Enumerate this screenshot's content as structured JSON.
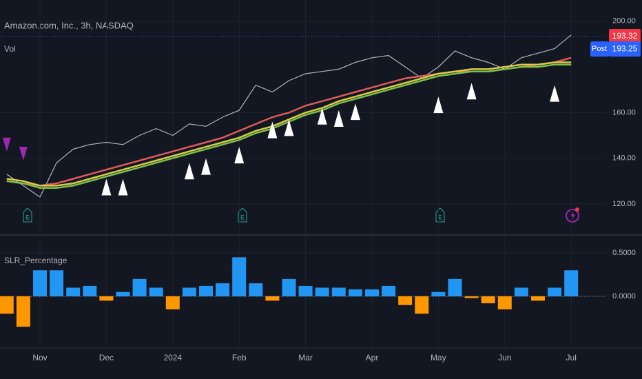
{
  "chart_data": [
    {
      "type": "line",
      "title": "Amazon.com, Inc., 3h, NASDAQ",
      "subtitle": "Vol",
      "ylim": [
        106.7,
        209.3
      ],
      "yticks": [
        {
          "value": 120,
          "label": "120.00"
        },
        {
          "value": 140,
          "label": "140.00"
        },
        {
          "value": 160,
          "label": "160.00"
        },
        {
          "value": 200,
          "label": "200.00"
        }
      ],
      "last_price": 193.32,
      "post_tag": "Post",
      "post_price": 193.25,
      "grid": true,
      "series": [
        {
          "style": "line",
          "color": "#b2b5be",
          "values": [
            133,
            128,
            123,
            138,
            144,
            146,
            147,
            146,
            150,
            153,
            150,
            155,
            154,
            158,
            161,
            172,
            169,
            174,
            177,
            178,
            179,
            182,
            184,
            185,
            180,
            175,
            180,
            187,
            184,
            182,
            179,
            184,
            186,
            188,
            194
          ]
        },
        {
          "style": "line",
          "color": "#e05a5a",
          "values": [
            130,
            129,
            128,
            129,
            131,
            133,
            135,
            137,
            139,
            141,
            143,
            145,
            147,
            149,
            152,
            155,
            158,
            160,
            163,
            165,
            167,
            169,
            171,
            173,
            175,
            176,
            177,
            178,
            178,
            178,
            179,
            180,
            181,
            182,
            184
          ]
        },
        {
          "style": "line",
          "color": "#d8cc4a",
          "values": [
            131,
            130,
            128,
            128,
            129,
            131,
            133,
            135,
            137,
            139,
            141,
            143,
            145,
            147,
            149,
            152,
            154,
            157,
            160,
            162,
            165,
            167,
            169,
            171,
            173,
            175,
            177,
            178,
            179,
            179,
            180,
            181,
            181,
            182,
            182
          ]
        },
        {
          "style": "line",
          "color": "#7cc04a",
          "values": [
            130,
            129,
            127,
            127,
            128,
            130,
            132,
            134,
            136,
            138,
            140,
            142,
            144,
            146,
            148,
            151,
            153,
            156,
            159,
            161,
            164,
            166,
            168,
            170,
            172,
            174,
            176,
            177,
            178,
            178,
            179,
            180,
            180,
            181,
            181
          ]
        },
        {
          "style": "marker-up",
          "color": "#ffffff",
          "values": [
            null,
            null,
            null,
            null,
            null,
            null,
            131,
            131,
            null,
            null,
            null,
            138,
            140,
            null,
            145,
            null,
            156,
            157,
            null,
            162,
            161,
            164,
            null,
            null,
            null,
            null,
            167,
            null,
            173,
            null,
            null,
            null,
            null,
            172,
            null
          ]
        },
        {
          "style": "marker-down",
          "color": "#9c27b0",
          "values": [
            143,
            139,
            null,
            null,
            null,
            null,
            null,
            null,
            null,
            null,
            null,
            null,
            null,
            null,
            null,
            null,
            null,
            null,
            null,
            null,
            null,
            null,
            null,
            null,
            null,
            null,
            null,
            null,
            null,
            null,
            null,
            null,
            null,
            null,
            null
          ]
        }
      ]
    },
    {
      "type": "bar",
      "title": "SLR_Percentage",
      "categories": [
        null,
        null,
        "Nov",
        null,
        null,
        null,
        "Dec",
        null,
        null,
        null,
        "2024",
        null,
        null,
        null,
        "Feb",
        null,
        null,
        null,
        "Mar",
        null,
        null,
        null,
        "Apr",
        null,
        null,
        null,
        "May",
        null,
        null,
        null,
        "Jun",
        null,
        null,
        null,
        "Jul"
      ],
      "values": [
        -0.2,
        -0.35,
        0.3,
        0.3,
        0.1,
        0.12,
        -0.05,
        0.05,
        0.2,
        0.1,
        -0.15,
        0.1,
        0.12,
        0.15,
        0.45,
        0.15,
        -0.05,
        0.2,
        0.12,
        0.1,
        0.1,
        0.08,
        0.08,
        0.12,
        -0.1,
        -0.2,
        0.05,
        0.2,
        -0.02,
        -0.08,
        -0.15,
        0.1,
        -0.05,
        0.1,
        0.3
      ],
      "pos_color": "#2196f3",
      "neg_color": "#ff9800",
      "ylim": [
        -0.595,
        0.675
      ],
      "yticks": [
        {
          "value": 0,
          "label": "0.0000"
        },
        {
          "value": 0.5,
          "label": "0.5000"
        }
      ]
    }
  ]
}
